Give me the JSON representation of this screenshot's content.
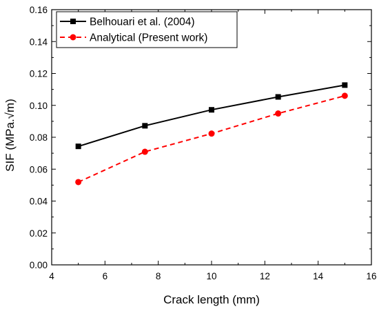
{
  "chart_data": {
    "type": "line",
    "xlabel": "Crack length (mm)",
    "ylabel": "SIF (MPa.√m)",
    "xlim": [
      4,
      16
    ],
    "ylim": [
      0,
      0.16
    ],
    "xticks": [
      "4",
      "6",
      "8",
      "10",
      "12",
      "14",
      "16"
    ],
    "yticks": [
      "0.00",
      "0.02",
      "0.04",
      "0.06",
      "0.08",
      "0.10",
      "0.12",
      "0.14",
      "0.16"
    ],
    "grid": false,
    "legend_position": "top-left",
    "series": [
      {
        "name": "Belhouari et al. (2004)",
        "color": "#000000",
        "line_style": "solid",
        "marker": "square",
        "x": [
          5,
          7.5,
          10,
          12.5,
          15
        ],
        "y": [
          0.0743,
          0.0872,
          0.0972,
          0.1053,
          0.1127
        ]
      },
      {
        "name": "Analytical (Present work)",
        "color": "#ff0000",
        "line_style": "dashed",
        "marker": "circle",
        "x": [
          5,
          7.5,
          10,
          12.5,
          15
        ],
        "y": [
          0.0519,
          0.0709,
          0.0823,
          0.0949,
          0.106
        ]
      }
    ]
  }
}
